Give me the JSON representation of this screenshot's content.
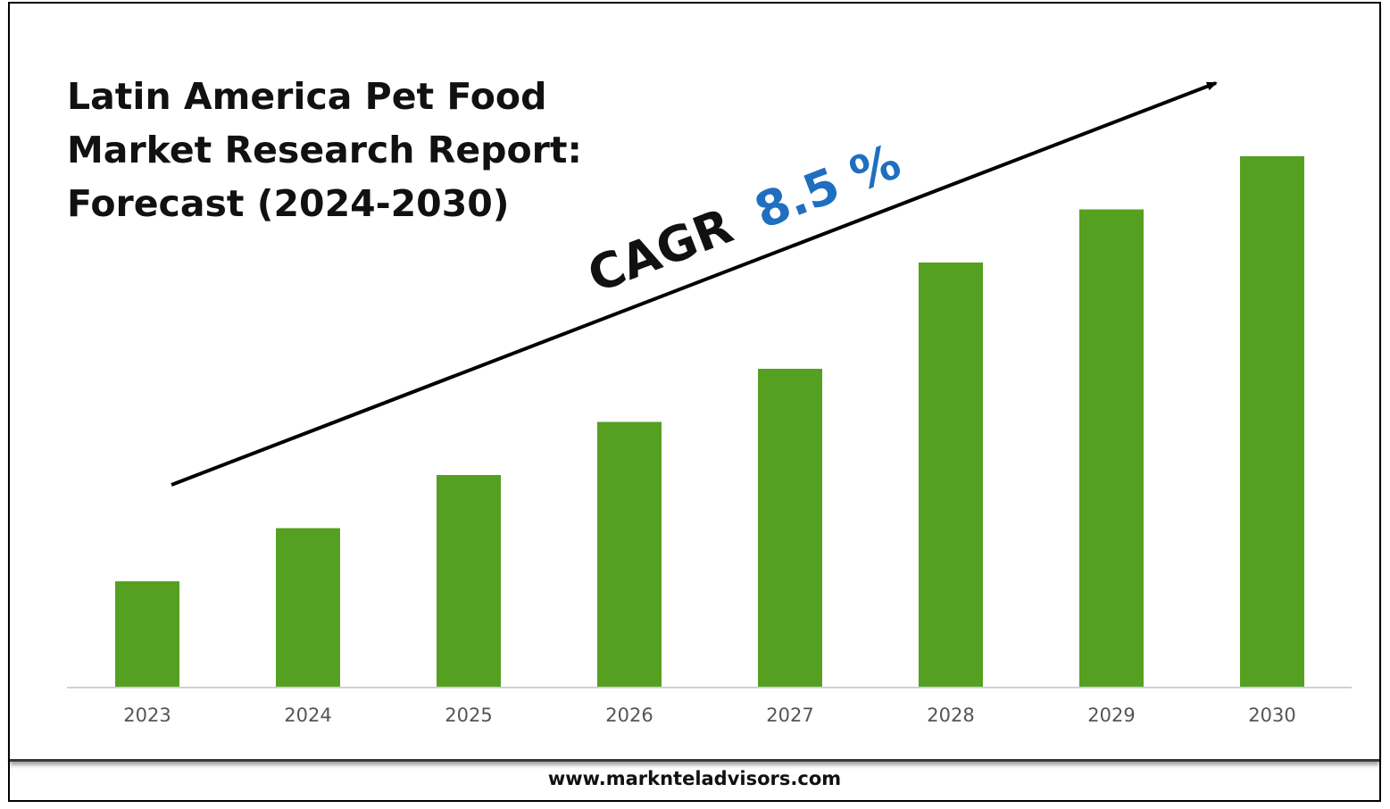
{
  "title_lines": [
    "Latin America Pet Food",
    "Market Research Report:",
    "Forecast (2024-2030)"
  ],
  "cagr": {
    "label": "CAGR",
    "value": "8.5 %"
  },
  "footer": {
    "url": "www.marknteladvisors.com"
  },
  "colors": {
    "bar": "#55a021",
    "cagr_value": "#1f6fc0",
    "text": "#111111",
    "tick": "#555555",
    "axis": "#d0d0d0"
  },
  "chart_data": {
    "type": "bar",
    "categories": [
      "2023",
      "2024",
      "2025",
      "2026",
      "2027",
      "2028",
      "2029",
      "2030"
    ],
    "values": [
      1.0,
      1.5,
      2.0,
      2.5,
      3.0,
      4.0,
      4.5,
      5.0
    ],
    "ylim": [
      0,
      5.0
    ],
    "grid": false,
    "legend": "none"
  }
}
